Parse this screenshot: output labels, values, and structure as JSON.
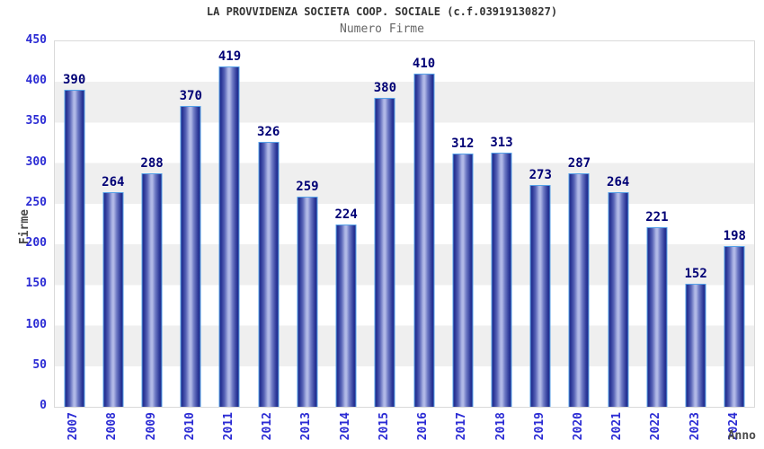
{
  "header": {
    "title": "LA PROVVIDENZA SOCIETA COOP. SOCIALE (c.f.03919130827)",
    "subtitle": "Numero Firme"
  },
  "chart_data": {
    "type": "bar",
    "title": "LA PROVVIDENZA SOCIETA COOP. SOCIALE (c.f.03919130827)",
    "subtitle": "Numero Firme",
    "categories": [
      "2007",
      "2008",
      "2009",
      "2010",
      "2011",
      "2012",
      "2013",
      "2014",
      "2015",
      "2016",
      "2017",
      "2018",
      "2019",
      "2020",
      "2021",
      "2022",
      "2023",
      "2024"
    ],
    "values": [
      390,
      264,
      288,
      370,
      419,
      326,
      259,
      224,
      380,
      410,
      312,
      313,
      273,
      287,
      264,
      221,
      152,
      198
    ],
    "xlabel": "Anno",
    "ylabel": "Firme",
    "ylim": [
      0,
      450
    ],
    "ytick_step": 50,
    "yticks": [
      0,
      50,
      100,
      150,
      200,
      250,
      300,
      350,
      400,
      450
    ],
    "grid": "alternating-horizontal-bands",
    "legend_position": "none",
    "colors": {
      "bar_edge": "#1e2a8a",
      "bar_center": "#b0b8e6",
      "bar_border": "#55a1e8",
      "value_label": "#000075",
      "axis_label": "#2b2bd4",
      "axis_title": "#4a4a4a",
      "band_gray": "#efefef",
      "plot_border": "#d9d9d9",
      "title": "#333333",
      "subtitle": "#666666"
    }
  }
}
